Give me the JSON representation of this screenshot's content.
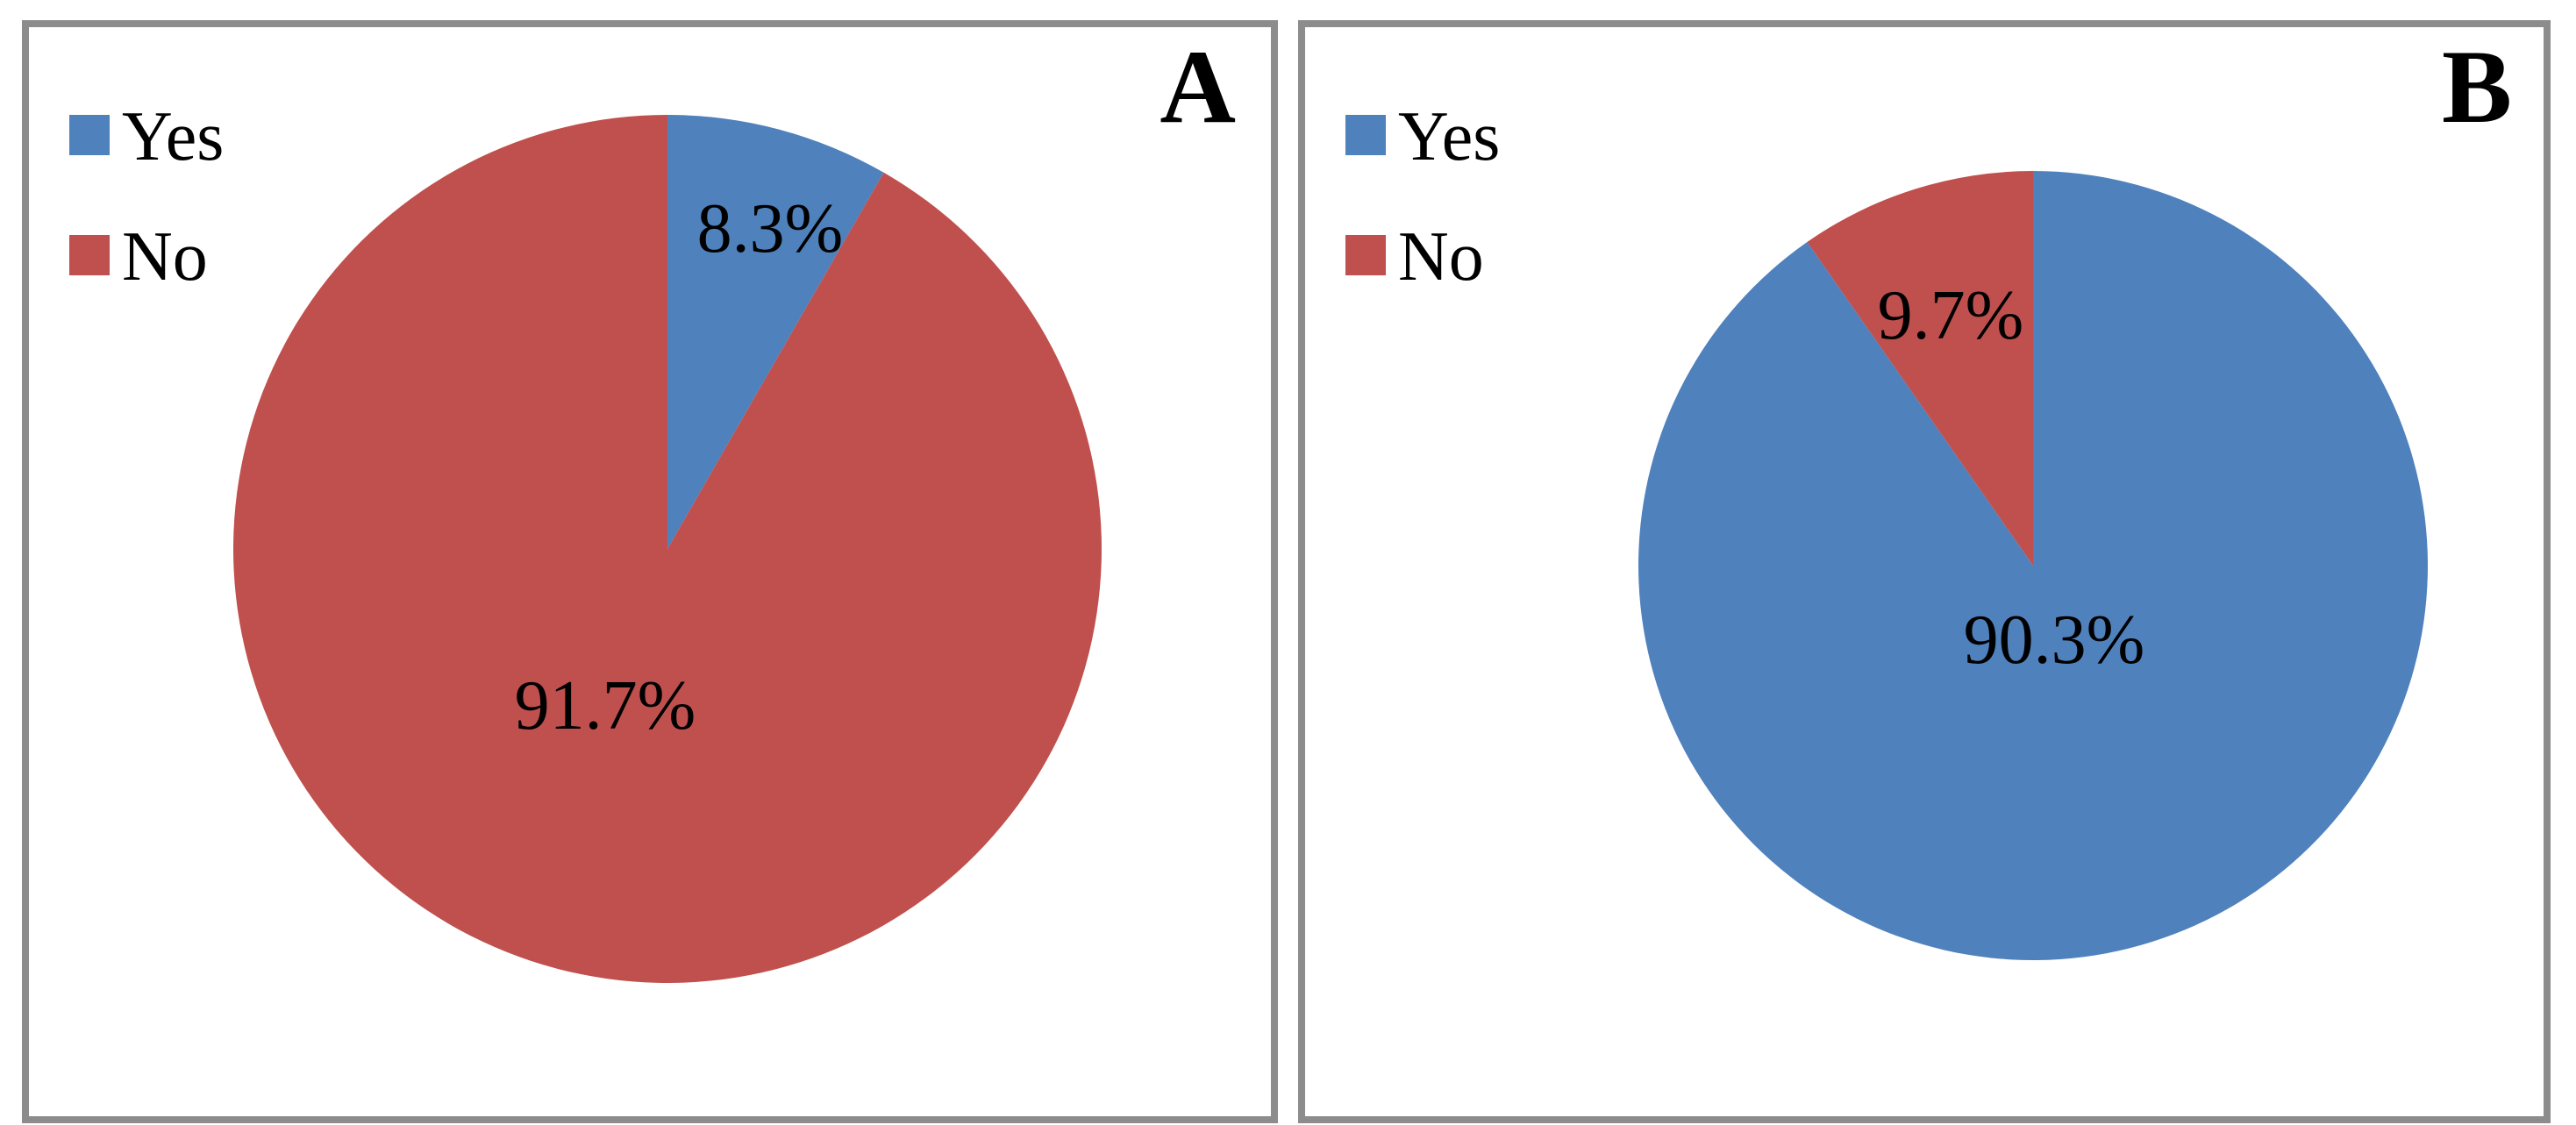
{
  "figure": {
    "background": "#ffffff",
    "panel_border_color": "#8C8C8C"
  },
  "chart_data": [
    {
      "type": "pie",
      "panel_label": "A",
      "legend_position": "top-left",
      "legend": [
        "Yes",
        "No"
      ],
      "categories": [
        "Yes",
        "No"
      ],
      "values": [
        8.3,
        91.7
      ],
      "unit": "%",
      "data_labels": [
        "8.3%",
        "91.7%"
      ],
      "colors": [
        "#4F81BD",
        "#C0504D"
      ],
      "start_angle_deg": 0,
      "direction": "clockwise",
      "grid": false
    },
    {
      "type": "pie",
      "panel_label": "B",
      "legend_position": "top-left",
      "legend": [
        "Yes",
        "No"
      ],
      "categories": [
        "Yes",
        "No"
      ],
      "values": [
        90.3,
        9.7
      ],
      "unit": "%",
      "data_labels": [
        "90.3%",
        "9.7%"
      ],
      "colors": [
        "#4F81BD",
        "#C0504D"
      ],
      "start_angle_deg": 0,
      "direction": "clockwise",
      "grid": false
    }
  ]
}
